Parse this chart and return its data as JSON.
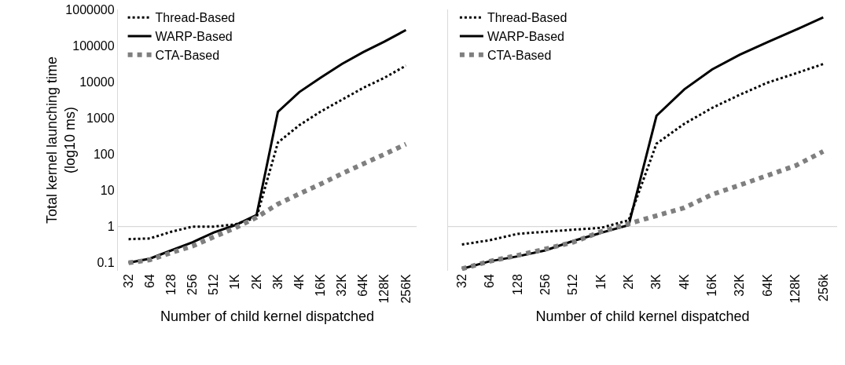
{
  "chart_data": [
    {
      "type": "line",
      "xlabel": "Number of child kernel dispatched",
      "ylabel": "Total kernel launching time\n(log10 ms)",
      "log": true,
      "grid": false,
      "legend": "top left",
      "tick_labels": "xy",
      "ylim": [
        0.06,
        1000000
      ],
      "yticks": [
        0.1,
        1,
        10,
        100,
        1000,
        10000,
        100000,
        1000000
      ],
      "categories": [
        "32",
        "64",
        "128",
        "256",
        "512",
        "1K",
        "2K",
        "3K",
        "4K",
        "16K",
        "32K",
        "64K",
        "128K",
        "256K"
      ],
      "ref_lines": [
        {
          "axis": "y",
          "value": 1,
          "color": "#d9d9d9"
        }
      ],
      "series": [
        {
          "name": "Thread-Based",
          "color": "#000000",
          "line_style": "dotted",
          "values": [
            0.45,
            0.47,
            0.72,
            1.0,
            1.0,
            1.15,
            1.8,
            210,
            630,
            1500,
            3200,
            6800,
            13000,
            28000
          ]
        },
        {
          "name": "WARP-Based",
          "color": "#000000",
          "line_style": "solid",
          "values": [
            0.1,
            0.13,
            0.22,
            0.37,
            0.69,
            1.1,
            2.1,
            1480,
            5200,
            13000,
            31000,
            66000,
            130000,
            270000
          ]
        },
        {
          "name": "CTA-Based",
          "color": "#7f7f7f",
          "line_style": "dotted",
          "values": [
            0.1,
            0.12,
            0.19,
            0.29,
            0.52,
            0.92,
            1.8,
            4.2,
            8,
            15,
            29,
            54,
            100,
            190
          ]
        }
      ]
    },
    {
      "type": "line",
      "xlabel": "Number of child kernel dispatched",
      "log": true,
      "grid": false,
      "legend": "top left",
      "tick_labels": "x",
      "ylim": [
        0.06,
        1000000
      ],
      "yticks": [
        0.1,
        1,
        10,
        100,
        1000,
        10000,
        100000,
        1000000
      ],
      "categories": [
        "32",
        "64",
        "128",
        "256",
        "512",
        "1K",
        "2K",
        "3K",
        "4K",
        "16K",
        "32K",
        "64K",
        "128K",
        "256k"
      ],
      "ref_lines": [
        {
          "axis": "y",
          "value": 1,
          "color": "#d9d9d9"
        }
      ],
      "series": [
        {
          "name": "Thread-Based",
          "color": "#000000",
          "line_style": "dotted",
          "values": [
            0.32,
            0.42,
            0.63,
            0.72,
            0.82,
            0.92,
            1.5,
            195,
            690,
            1900,
            4400,
            9500,
            17000,
            31000
          ]
        },
        {
          "name": "WARP-Based",
          "color": "#000000",
          "line_style": "solid",
          "values": [
            0.068,
            0.11,
            0.15,
            0.22,
            0.4,
            0.67,
            1.1,
            1150,
            6200,
            22000,
            56000,
            125000,
            270000,
            600000
          ]
        },
        {
          "name": "CTA-Based",
          "color": "#7f7f7f",
          "line_style": "dotted",
          "values": [
            0.068,
            0.11,
            0.16,
            0.24,
            0.37,
            0.72,
            1.2,
            2.0,
            3.3,
            7.7,
            14,
            26,
            48,
            120
          ]
        }
      ]
    }
  ]
}
